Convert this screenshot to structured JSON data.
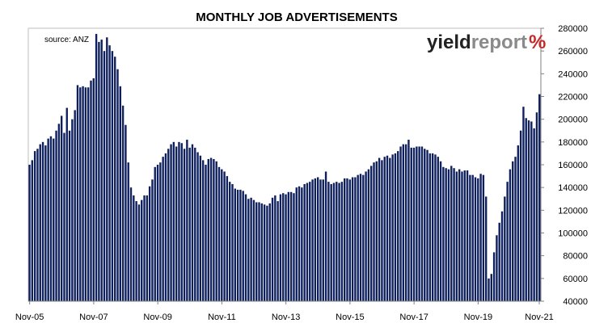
{
  "chart_data": {
    "type": "bar",
    "title": "MONTHLY JOB ADVERTISEMENTS",
    "source": "source: ANZ",
    "y_axis_position": "right",
    "ylim": [
      40000,
      280000
    ],
    "y_ticks": [
      "40000",
      "60000",
      "80000",
      "100000",
      "120000",
      "140000",
      "160000",
      "180000",
      "200000",
      "220000",
      "240000",
      "260000",
      "280000"
    ],
    "x_tick_labels": [
      "Nov-05",
      "Nov-07",
      "Nov-09",
      "Nov-11",
      "Nov-13",
      "Nov-15",
      "Nov-17",
      "Nov-19",
      "Nov-21"
    ],
    "x_tick_index": [
      0,
      24,
      48,
      72,
      96,
      120,
      144,
      168,
      192
    ],
    "bar_color": "#0d1f5c",
    "series": [
      {
        "values": [
          160000,
          164000,
          172000,
          174000,
          178000,
          180000,
          177000,
          183000,
          185000,
          183000,
          190000,
          196000,
          203000,
          188000,
          210000,
          190000,
          200000,
          208000,
          230000,
          228000,
          229000,
          228000,
          228000,
          234000,
          236000,
          275000,
          268000,
          270000,
          260000,
          272000,
          265000,
          260000,
          255000,
          244000,
          229000,
          212000,
          195000,
          162000,
          140000,
          133000,
          128000,
          125000,
          129000,
          133000,
          133000,
          141000,
          147000,
          158000,
          160000,
          162000,
          167000,
          170000,
          174000,
          178000,
          180000,
          176000,
          180000,
          179000,
          174000,
          182000,
          175000,
          178000,
          175000,
          171000,
          168000,
          164000,
          160000,
          165000,
          166000,
          165000,
          163000,
          158000,
          156000,
          154000,
          150000,
          145000,
          143000,
          139000,
          138000,
          138000,
          137000,
          134000,
          130000,
          131000,
          129000,
          127000,
          127000,
          126000,
          125000,
          124000,
          126000,
          131000,
          133000,
          128000,
          134000,
          135000,
          134000,
          136000,
          136000,
          135000,
          140000,
          141000,
          140000,
          143000,
          144000,
          145000,
          147000,
          148000,
          149000,
          147000,
          147000,
          154000,
          145000,
          143000,
          144000,
          145000,
          144000,
          145000,
          148000,
          148000,
          147000,
          149000,
          149000,
          151000,
          152000,
          151000,
          154000,
          156000,
          159000,
          162000,
          163000,
          166000,
          164000,
          167000,
          168000,
          166000,
          169000,
          170000,
          172000,
          176000,
          178000,
          178000,
          182000,
          175000,
          175000,
          176000,
          176000,
          176000,
          174000,
          173000,
          170000,
          170000,
          169000,
          167000,
          163000,
          158000,
          157000,
          156000,
          159000,
          157000,
          154000,
          156000,
          154000,
          155000,
          155000,
          151000,
          151000,
          149000,
          148000,
          152000,
          151000,
          132000,
          60000,
          64000,
          83000,
          98000,
          109000,
          119000,
          132000,
          145000,
          156000,
          163000,
          167000,
          177000,
          190000,
          211000,
          201000,
          199000,
          198000,
          192000,
          206000,
          222000
        ]
      }
    ]
  },
  "logo": {
    "part1": "yield",
    "part2": "report",
    "symbol": "%"
  },
  "colors": {
    "logo_dark": "#222222",
    "logo_grey": "#8a8a8a",
    "logo_green": "#2e7d32",
    "logo_red": "#c62828"
  }
}
